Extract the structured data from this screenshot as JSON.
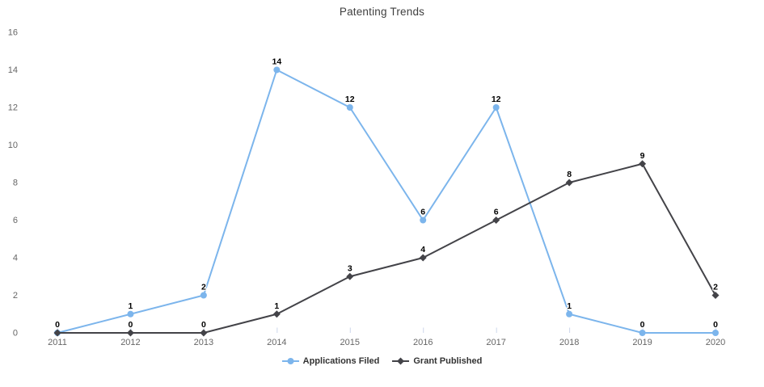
{
  "chart_data": {
    "type": "line",
    "title": "Patenting Trends",
    "categories": [
      "2011",
      "2012",
      "2013",
      "2014",
      "2015",
      "2016",
      "2017",
      "2018",
      "2019",
      "2020"
    ],
    "series": [
      {
        "name": "Applications Filed",
        "values": [
          0,
          1,
          2,
          14,
          12,
          6,
          12,
          1,
          0,
          0
        ],
        "color": "#7cb5ec",
        "marker": "circle"
      },
      {
        "name": "Grant Published",
        "values": [
          0,
          0,
          0,
          1,
          3,
          4,
          6,
          8,
          9,
          2
        ],
        "color": "#434348",
        "marker": "diamond"
      }
    ],
    "xlabel": "",
    "ylabel": "",
    "ylim": [
      0,
      16
    ],
    "ytick_step": 2,
    "grid": false,
    "axis_line": false,
    "data_labels": true,
    "legend_position": "bottom",
    "colors": {
      "title": "#3f3f3f",
      "axis_label": "#666666",
      "tick": "#ccd6eb",
      "data_label": "#000000",
      "legend_text": "#333333",
      "background": "#ffffff"
    }
  }
}
